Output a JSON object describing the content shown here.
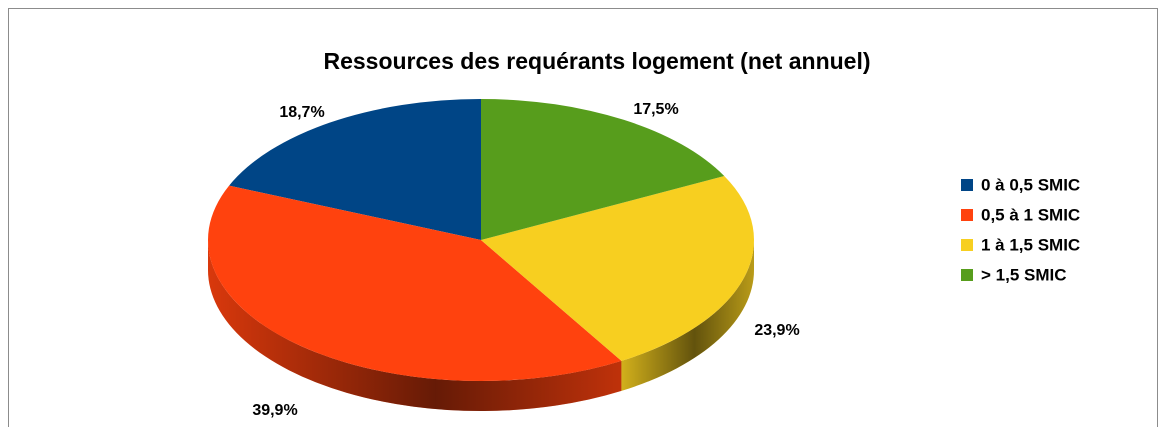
{
  "chart_data": {
    "type": "pie3d",
    "title": "Ressources des requérants logement (net annuel)",
    "categories": [
      "0 à 0,5 SMIC",
      "0,5 à 1 SMIC",
      "1 à 1,5 SMIC",
      "> 1,5 SMIC"
    ],
    "values": [
      18.7,
      39.9,
      23.9,
      17.5
    ],
    "value_labels": [
      "18,7%",
      "39,9%",
      "23,9%",
      "17,5%"
    ],
    "colors": [
      "#004586",
      "#ff420e",
      "#f7cf20",
      "#579d1c"
    ],
    "legend": "right"
  }
}
